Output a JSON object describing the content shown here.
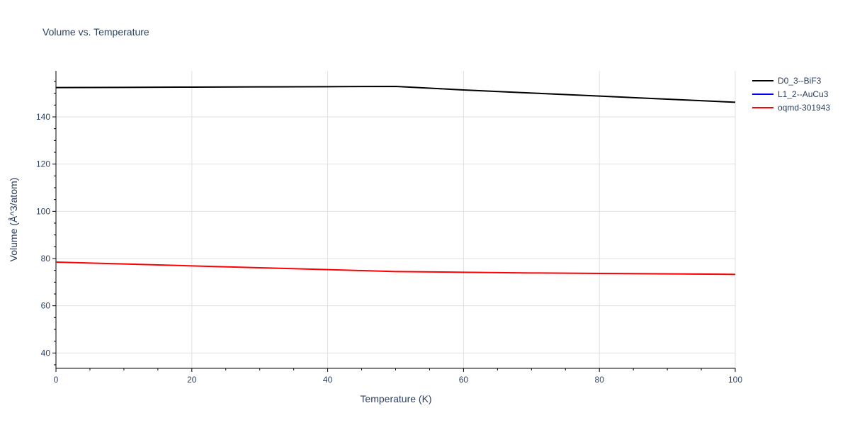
{
  "chart_data": {
    "type": "line",
    "title": "Volume vs. Temperature",
    "xlabel": "Temperature (K)",
    "ylabel": "Volume (Å^3/atom)",
    "xlim": [
      0,
      100
    ],
    "ylim": [
      33.5,
      159.5
    ],
    "x_ticks": [
      0,
      20,
      40,
      60,
      80,
      100
    ],
    "y_ticks": [
      40,
      60,
      80,
      100,
      120,
      140
    ],
    "grid": true,
    "legend_position": "top-right",
    "series": [
      {
        "name": "D0_3--BiF3",
        "color": "#000000",
        "x": [
          0,
          10,
          20,
          30,
          40,
          50,
          60,
          70,
          80,
          90,
          100
        ],
        "y": [
          152.4,
          152.5,
          152.6,
          152.7,
          152.8,
          152.9,
          151.4,
          150.1,
          148.8,
          147.5,
          146.2
        ]
      },
      {
        "name": "L1_2--AuCu3",
        "color": "#0000ff",
        "x": [],
        "y": []
      },
      {
        "name": "oqmd-301943",
        "color": "#ff0000",
        "x": [
          0,
          10,
          20,
          30,
          40,
          50,
          60,
          70,
          80,
          90,
          100
        ],
        "y": [
          78.5,
          77.7,
          76.9,
          76.1,
          75.3,
          74.5,
          74.2,
          73.9,
          73.7,
          73.5,
          73.3
        ]
      }
    ]
  }
}
